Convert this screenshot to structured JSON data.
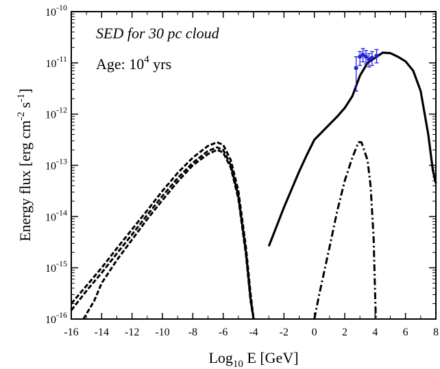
{
  "chart_data": {
    "type": "line",
    "xlabel": {
      "prefix": "Log",
      "sub": "10",
      "suffix": " E [GeV]"
    },
    "ylabel": {
      "p1": "Energy flux [erg cm",
      "s1": "-2",
      "p2": " s",
      "s2": "-1",
      "p3": "]"
    },
    "xlim": [
      -16,
      8
    ],
    "ylim_exp": [
      -16,
      -10
    ],
    "y_log": true,
    "x_ticks": [
      -16,
      -14,
      -12,
      -10,
      -8,
      -6,
      -4,
      -2,
      0,
      2,
      4,
      6,
      8
    ],
    "x_tick_labels": [
      "-16",
      "-14",
      "-12",
      "-10",
      "-8",
      "-6",
      "-4",
      "-2",
      "0",
      "2",
      "4",
      "6",
      "8"
    ],
    "y_tick_exps": [
      -16,
      -15,
      -14,
      -13,
      -12,
      -11,
      -10
    ],
    "y_tick_base": "10",
    "y_tick_sups": [
      "-16",
      "-15",
      "-14",
      "-13",
      "-12",
      "-11",
      "-10"
    ],
    "annotations": {
      "title": "SED for 30 pc cloud",
      "age_prefix": "Age: 10",
      "age_sup": "4",
      "age_suffix": " yrs"
    },
    "colors": {
      "line": "#000000",
      "data": "#1f1fd6"
    },
    "series": [
      {
        "style": "solid",
        "points": [
          [
            -3,
            -14.58
          ],
          [
            -2.5,
            -14.2
          ],
          [
            -2,
            -13.82
          ],
          [
            -1.5,
            -13.47
          ],
          [
            -1,
            -13.12
          ],
          [
            -0.5,
            -12.8
          ],
          [
            0,
            -12.5
          ],
          [
            0.5,
            -12.35
          ],
          [
            1,
            -12.2
          ],
          [
            1.5,
            -12.05
          ],
          [
            2,
            -11.88
          ],
          [
            2.5,
            -11.65
          ],
          [
            3,
            -11.25
          ],
          [
            3.5,
            -11.0
          ],
          [
            4,
            -10.9
          ],
          [
            4.5,
            -10.8
          ],
          [
            5,
            -10.81
          ],
          [
            5.5,
            -10.88
          ],
          [
            6,
            -10.97
          ],
          [
            6.5,
            -11.15
          ],
          [
            7,
            -11.55
          ],
          [
            7.5,
            -12.4
          ],
          [
            7.8,
            -13.1
          ],
          [
            8,
            -13.35
          ]
        ]
      },
      {
        "style": "dashed",
        "points": [
          [
            -16,
            -15.7
          ],
          [
            -15,
            -15.35
          ],
          [
            -14,
            -15.0
          ],
          [
            -13,
            -14.62
          ],
          [
            -12,
            -14.25
          ],
          [
            -11,
            -13.88
          ],
          [
            -10,
            -13.5
          ],
          [
            -9,
            -13.15
          ],
          [
            -8,
            -12.85
          ],
          [
            -7,
            -12.62
          ],
          [
            -6.4,
            -12.55
          ],
          [
            -6,
            -12.6
          ],
          [
            -5.5,
            -12.9
          ],
          [
            -5,
            -13.5
          ],
          [
            -4.5,
            -14.6
          ],
          [
            -4.2,
            -15.5
          ],
          [
            -4,
            -16.0
          ]
        ]
      },
      {
        "style": "dashed",
        "points": [
          [
            -16,
            -15.83
          ],
          [
            -15,
            -15.45
          ],
          [
            -14,
            -15.1
          ],
          [
            -13,
            -14.72
          ],
          [
            -12,
            -14.35
          ],
          [
            -11,
            -13.97
          ],
          [
            -10,
            -13.6
          ],
          [
            -9,
            -13.25
          ],
          [
            -8,
            -12.95
          ],
          [
            -7,
            -12.72
          ],
          [
            -6.4,
            -12.65
          ],
          [
            -6,
            -12.7
          ],
          [
            -5.5,
            -13.0
          ],
          [
            -5,
            -13.6
          ],
          [
            -4.5,
            -14.7
          ],
          [
            -4.2,
            -15.6
          ],
          [
            -4,
            -16.0
          ]
        ]
      },
      {
        "style": "dashed",
        "points": [
          [
            -15.2,
            -16.0
          ],
          [
            -14.5,
            -15.65
          ],
          [
            -14,
            -15.3
          ],
          [
            -13,
            -14.85
          ],
          [
            -12,
            -14.45
          ],
          [
            -11,
            -14.05
          ],
          [
            -10,
            -13.68
          ],
          [
            -9,
            -13.32
          ],
          [
            -8,
            -13.0
          ],
          [
            -7,
            -12.78
          ],
          [
            -6.4,
            -12.7
          ],
          [
            -6,
            -12.75
          ],
          [
            -5.5,
            -13.05
          ],
          [
            -5,
            -13.65
          ],
          [
            -4.5,
            -14.75
          ],
          [
            -4.2,
            -15.65
          ],
          [
            -4,
            -16.0
          ]
        ]
      },
      {
        "style": "dashdot",
        "points": [
          [
            0,
            -16.0
          ],
          [
            0.3,
            -15.55
          ],
          [
            1,
            -14.6
          ],
          [
            1.5,
            -13.9
          ],
          [
            2,
            -13.3
          ],
          [
            2.5,
            -12.85
          ],
          [
            2.9,
            -12.55
          ],
          [
            3.1,
            -12.55
          ],
          [
            3.5,
            -12.9
          ],
          [
            3.7,
            -13.4
          ],
          [
            3.9,
            -14.4
          ],
          [
            4,
            -15.5
          ],
          [
            4.05,
            -16.0
          ]
        ]
      },
      {
        "style": "dashed-thin",
        "points": [
          [
            -2.3,
            -16.0
          ],
          [
            -0.7,
            -16.0
          ]
        ]
      }
    ],
    "data_points": [
      {
        "x": 2.75,
        "y": -11.1,
        "ylo": -11.55,
        "yhi": -10.88,
        "xerr": 0.15
      },
      {
        "x": 3.0,
        "y": -10.88,
        "ylo": -11.05,
        "yhi": -10.78,
        "xerr": 0.15
      },
      {
        "x": 3.2,
        "y": -10.84,
        "ylo": -10.98,
        "yhi": -10.72,
        "xerr": 0.15
      },
      {
        "x": 3.4,
        "y": -10.88,
        "ylo": -11.02,
        "yhi": -10.76,
        "xerr": 0.15
      },
      {
        "x": 3.6,
        "y": -10.93,
        "ylo": -11.08,
        "yhi": -10.82,
        "xerr": 0.15
      },
      {
        "x": 3.8,
        "y": -10.9,
        "ylo": -11.05,
        "yhi": -10.78,
        "xerr": 0.15
      },
      {
        "x": 4.1,
        "y": -10.86,
        "ylo": -11.0,
        "yhi": -10.74,
        "xerr": 0.15
      }
    ]
  }
}
